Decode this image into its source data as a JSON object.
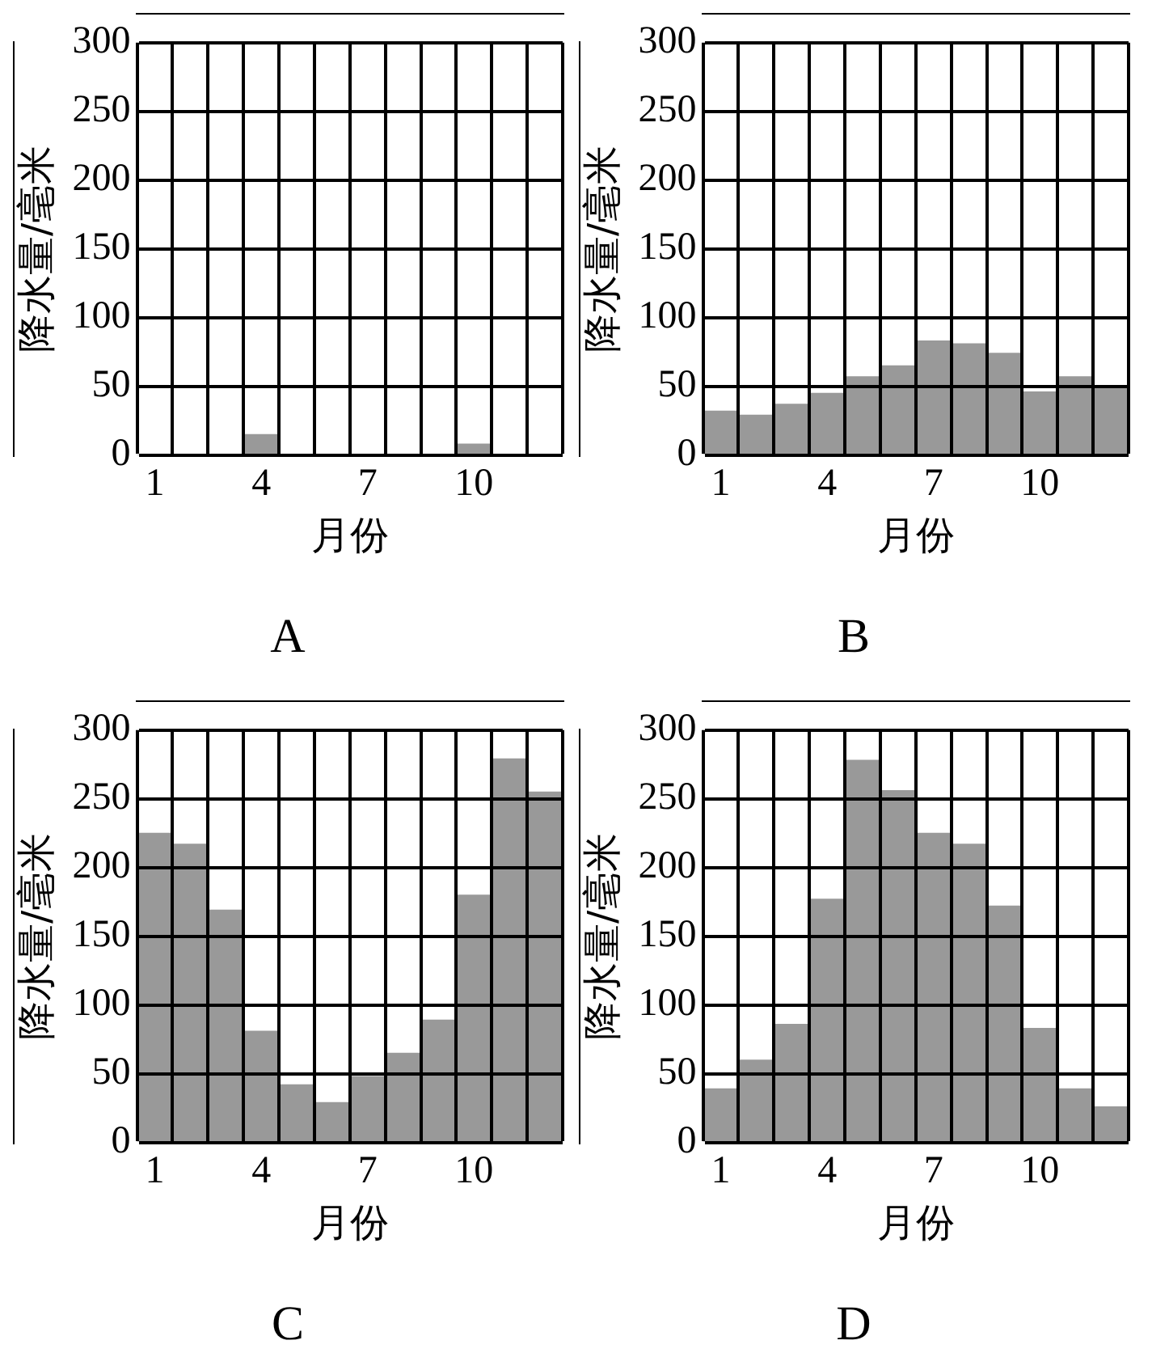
{
  "chart_data": [
    {
      "type": "bar",
      "title": "A",
      "xlabel": "月份",
      "ylabel": "降水量/毫米",
      "categories": [
        "1",
        null,
        null,
        "4",
        null,
        null,
        "7",
        null,
        null,
        "10",
        null,
        null
      ],
      "values": [
        0,
        0,
        0,
        15,
        0,
        0,
        0,
        0,
        0,
        8,
        0,
        0
      ],
      "color": "#999999",
      "ylim": [
        0,
        300
      ],
      "yticks": [
        0,
        50,
        100,
        150,
        200,
        250,
        300
      ],
      "grid": true
    },
    {
      "type": "bar",
      "title": "B",
      "xlabel": "月份",
      "ylabel": "降水量/毫米",
      "categories": [
        "1",
        null,
        null,
        "4",
        null,
        null,
        "7",
        null,
        null,
        "10",
        null,
        null
      ],
      "values": [
        32,
        29,
        37,
        45,
        57,
        65,
        83,
        81,
        74,
        46,
        57,
        50
      ],
      "color": "#999999",
      "ylim": [
        0,
        300
      ],
      "yticks": [
        0,
        50,
        100,
        150,
        200,
        250,
        300
      ],
      "grid": true
    },
    {
      "type": "bar",
      "title": "C",
      "xlabel": "月份",
      "ylabel": "降水量/毫米",
      "categories": [
        "1",
        null,
        null,
        "4",
        null,
        null,
        "7",
        null,
        null,
        "10",
        null,
        null
      ],
      "values": [
        225,
        217,
        169,
        81,
        42,
        29,
        48,
        65,
        89,
        180,
        279,
        255
      ],
      "color": "#999999",
      "ylim": [
        0,
        300
      ],
      "yticks": [
        0,
        50,
        100,
        150,
        200,
        250,
        300
      ],
      "grid": true
    },
    {
      "type": "bar",
      "title": "D",
      "xlabel": "月份",
      "ylabel": "降水量/毫米",
      "categories": [
        "1",
        null,
        null,
        "4",
        null,
        null,
        "7",
        null,
        null,
        "10",
        null,
        null
      ],
      "values": [
        39,
        60,
        86,
        177,
        278,
        256,
        225,
        217,
        172,
        83,
        39,
        26
      ],
      "color": "#999999",
      "ylim": [
        0,
        300
      ],
      "yticks": [
        0,
        50,
        100,
        150,
        200,
        250,
        300
      ],
      "grid": true
    }
  ]
}
